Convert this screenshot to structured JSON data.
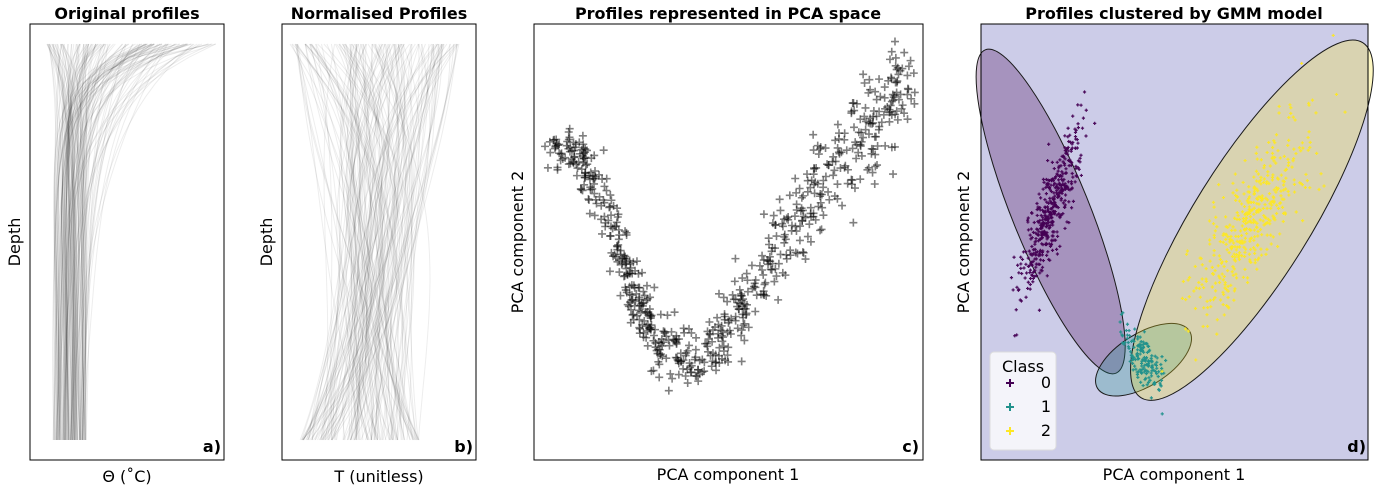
{
  "colors": {
    "class0": "#440154",
    "class1": "#21918c",
    "class2": "#fde725",
    "panel_d_bg": "#cccce8",
    "ink": "#000000"
  },
  "chart_data": [
    {
      "id": "a",
      "type": "line",
      "title": "Original profiles",
      "xlabel": "Θ (˚C)",
      "ylabel": "Depth",
      "corner_label": "a)",
      "grid": false,
      "ticks_shown": false
    },
    {
      "id": "b",
      "type": "line",
      "title": "Normalised Profiles",
      "xlabel": "T (unitless)",
      "ylabel": "Depth",
      "corner_label": "b)",
      "grid": false,
      "ticks_shown": false
    },
    {
      "id": "c",
      "type": "scatter",
      "title": "Profiles represented in PCA space",
      "xlabel": "PCA component 1",
      "ylabel": "PCA component 2",
      "corner_label": "c)",
      "grid": false,
      "ticks_shown": false,
      "xlim": [
        0,
        100
      ],
      "ylim": [
        0,
        100
      ],
      "marker": "+",
      "point_trend": [
        [
          4,
          70
        ],
        [
          10,
          72
        ],
        [
          17,
          62
        ],
        [
          22,
          50
        ],
        [
          26,
          38
        ],
        [
          30,
          30
        ],
        [
          36,
          24
        ],
        [
          42,
          22
        ],
        [
          48,
          28
        ],
        [
          54,
          36
        ],
        [
          62,
          46
        ],
        [
          68,
          56
        ],
        [
          74,
          64
        ],
        [
          80,
          70
        ],
        [
          86,
          76
        ],
        [
          92,
          82
        ],
        [
          96,
          86
        ]
      ]
    },
    {
      "id": "d",
      "type": "scatter",
      "title": "Profiles clustered by GMM model",
      "xlabel": "PCA component 1",
      "ylabel": "PCA component 2",
      "corner_label": "d)",
      "grid": false,
      "ticks_shown": false,
      "xlim": [
        0,
        100
      ],
      "ylim": [
        0,
        100
      ],
      "legend": {
        "title": "Class",
        "placement": "lower-left",
        "entries": [
          "0",
          "1",
          "2"
        ]
      },
      "clusters": [
        {
          "class": "0",
          "center": [
            18,
            57
          ],
          "spread": [
            4,
            20
          ],
          "angle_deg": 70
        },
        {
          "class": "1",
          "center": [
            42,
            23
          ],
          "spread": [
            9,
            3.5
          ],
          "angle_deg": 35
        },
        {
          "class": "2",
          "center": [
            70,
            55
          ],
          "spread": [
            8,
            26
          ],
          "angle_deg": 58
        }
      ],
      "ellipses": [
        {
          "class": "0",
          "center": [
            18,
            57
          ],
          "semi_axes": [
            10,
            40
          ],
          "rotation_deg": -22
        },
        {
          "class": "1",
          "center": [
            42,
            23
          ],
          "semi_axes": [
            14,
            6
          ],
          "rotation_deg": -32
        },
        {
          "class": "2",
          "center": [
            70,
            55
          ],
          "semi_axes": [
            15,
            48
          ],
          "rotation_deg": 32
        }
      ]
    }
  ]
}
